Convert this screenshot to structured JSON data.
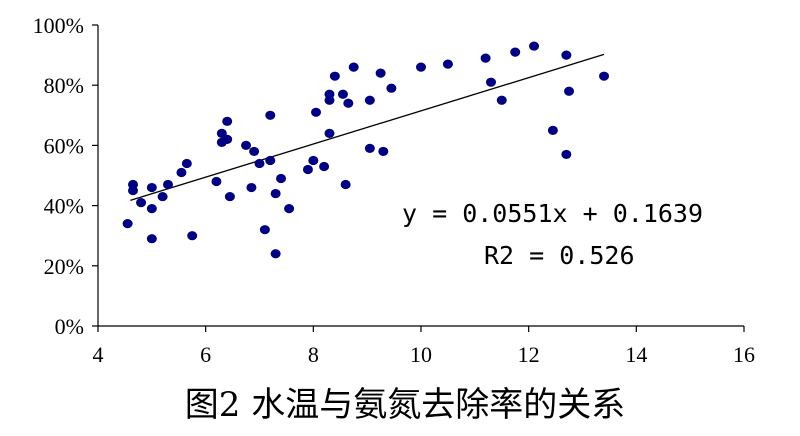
{
  "chart_data": {
    "type": "scatter",
    "title": "",
    "caption": "图2 水温与氨氮去除率的关系",
    "xlabel": "",
    "ylabel": "",
    "xlim": [
      4,
      16
    ],
    "ylim": [
      0,
      1
    ],
    "x_ticks": [
      "4",
      "6",
      "8",
      "10",
      "12",
      "14",
      "16"
    ],
    "y_ticks": [
      "0%",
      "20%",
      "40%",
      "60%",
      "80%",
      "100%"
    ],
    "grid": false,
    "point_color": "#000080",
    "trendline": {
      "slope": 0.0551,
      "intercept": 0.1639,
      "x_range": [
        4.6,
        13.4
      ]
    },
    "equation_text": "y = 0.0551x + 0.1639",
    "r2_text": "R2 = 0.526",
    "points": [
      [
        4.55,
        0.34
      ],
      [
        4.65,
        0.47
      ],
      [
        4.65,
        0.45
      ],
      [
        4.8,
        0.41
      ],
      [
        5.0,
        0.46
      ],
      [
        5.0,
        0.39
      ],
      [
        5.0,
        0.29
      ],
      [
        5.2,
        0.43
      ],
      [
        5.3,
        0.47
      ],
      [
        5.55,
        0.51
      ],
      [
        5.65,
        0.54
      ],
      [
        5.75,
        0.3
      ],
      [
        6.2,
        0.48
      ],
      [
        6.3,
        0.64
      ],
      [
        6.3,
        0.61
      ],
      [
        6.4,
        0.68
      ],
      [
        6.4,
        0.62
      ],
      [
        6.45,
        0.43
      ],
      [
        6.75,
        0.6
      ],
      [
        6.85,
        0.46
      ],
      [
        6.9,
        0.58
      ],
      [
        7.0,
        0.54
      ],
      [
        7.1,
        0.32
      ],
      [
        7.2,
        0.7
      ],
      [
        7.2,
        0.55
      ],
      [
        7.3,
        0.44
      ],
      [
        7.3,
        0.24
      ],
      [
        7.4,
        0.49
      ],
      [
        7.55,
        0.39
      ],
      [
        7.9,
        0.52
      ],
      [
        8.0,
        0.55
      ],
      [
        8.05,
        0.71
      ],
      [
        8.2,
        0.53
      ],
      [
        8.3,
        0.77
      ],
      [
        8.3,
        0.75
      ],
      [
        8.3,
        0.64
      ],
      [
        8.4,
        0.83
      ],
      [
        8.55,
        0.77
      ],
      [
        8.6,
        0.47
      ],
      [
        8.65,
        0.74
      ],
      [
        8.75,
        0.86
      ],
      [
        9.05,
        0.75
      ],
      [
        9.05,
        0.59
      ],
      [
        9.25,
        0.84
      ],
      [
        9.3,
        0.58
      ],
      [
        9.45,
        0.79
      ],
      [
        10.0,
        0.86
      ],
      [
        10.5,
        0.87
      ],
      [
        11.2,
        0.89
      ],
      [
        11.3,
        0.81
      ],
      [
        11.5,
        0.75
      ],
      [
        11.75,
        0.91
      ],
      [
        12.1,
        0.93
      ],
      [
        12.45,
        0.65
      ],
      [
        12.7,
        0.9
      ],
      [
        12.7,
        0.57
      ],
      [
        12.75,
        0.78
      ],
      [
        13.4,
        0.83
      ]
    ]
  }
}
